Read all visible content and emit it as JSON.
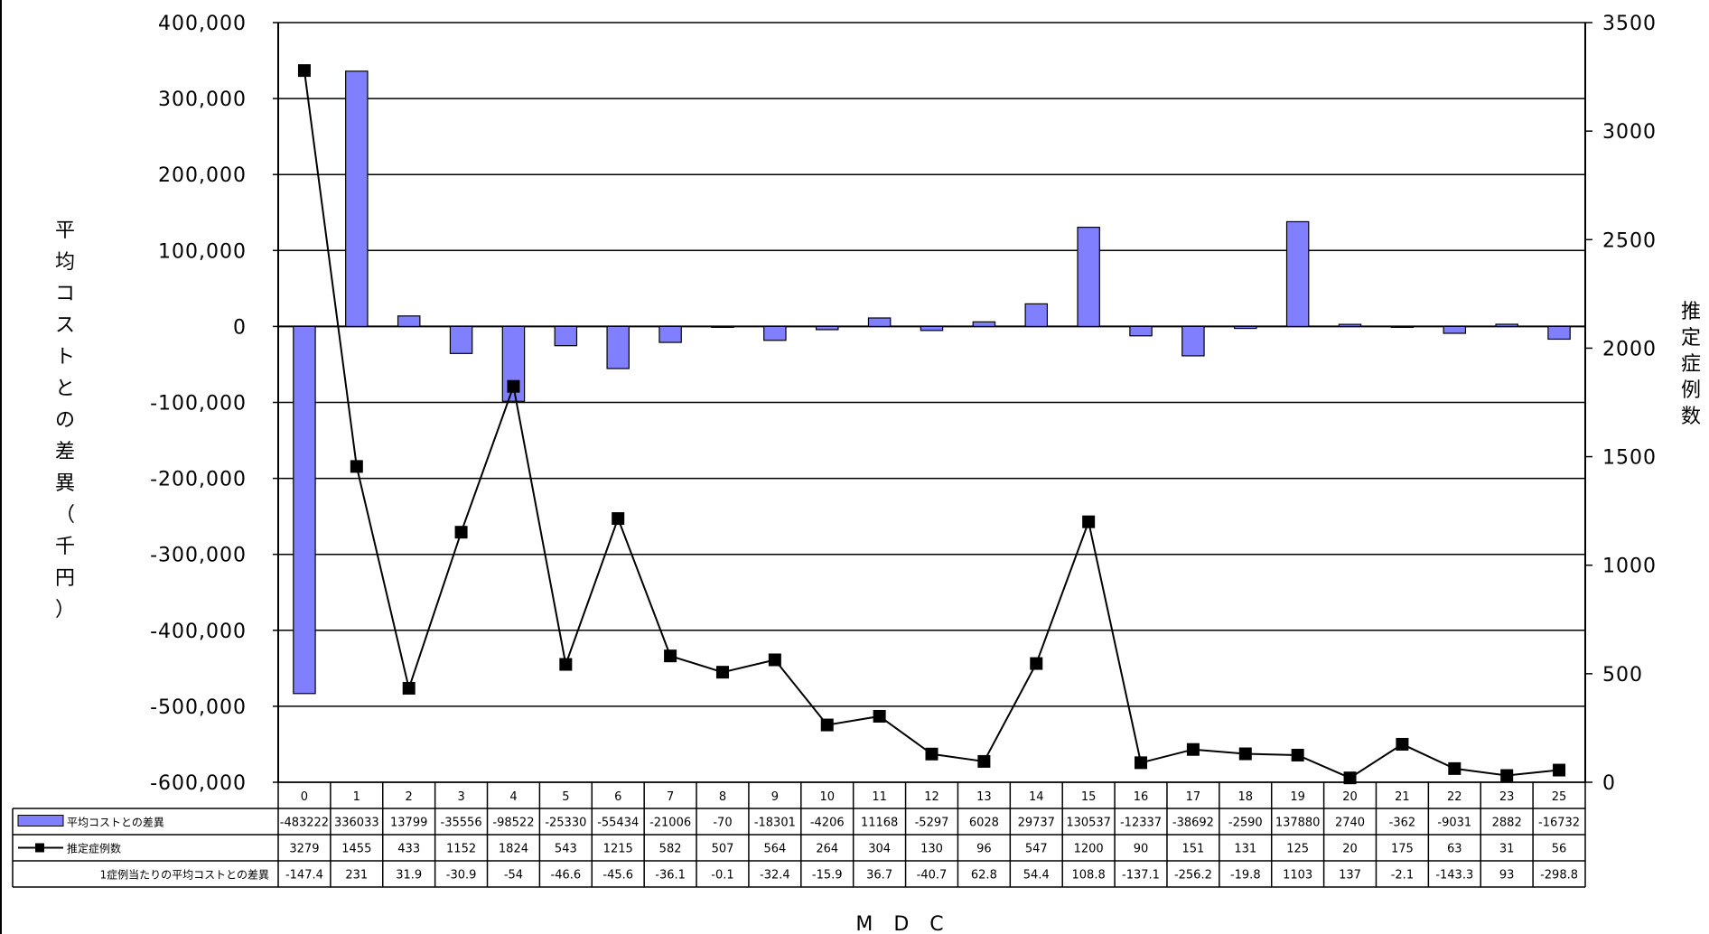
{
  "chart_data": {
    "type": "bar",
    "title": "",
    "xlabel": "M D C",
    "ylabel_left": "平均コストとの差異（千円）",
    "ylabel_right": "推定症例数",
    "ylim_left": [
      -600000,
      400000
    ],
    "ylim_right": [
      0,
      3500
    ],
    "yticks_left": [
      "400,000",
      "300,000",
      "200,000",
      "100,000",
      "0",
      "-100,000",
      "-200,000",
      "-300,000",
      "-400,000",
      "-500,000",
      "-600,000"
    ],
    "yticks_right": [
      "3500",
      "3000",
      "2500",
      "2000",
      "1500",
      "1000",
      "500",
      "0"
    ],
    "grid": true,
    "colors": {
      "bar": "#8080ff",
      "line": "#000000",
      "marker": "#000000"
    },
    "categories": [
      "0",
      "1",
      "2",
      "3",
      "4",
      "5",
      "6",
      "7",
      "8",
      "9",
      "10",
      "11",
      "12",
      "13",
      "14",
      "15",
      "16",
      "17",
      "18",
      "19",
      "20",
      "21",
      "22",
      "23",
      "25"
    ],
    "series": [
      {
        "name": "平均コストとの差異",
        "type": "bar",
        "axis": "left",
        "values": [
          -483222,
          336033,
          13799,
          -35556,
          -98522,
          -25330,
          -55434,
          -21006,
          -70,
          -18301,
          -4206,
          11168,
          -5297,
          6028,
          29737,
          130537,
          -12337,
          -38692,
          -2590,
          137880,
          2740,
          -362,
          -9031,
          2882,
          -16732
        ],
        "labels": [
          "-483222",
          "336033",
          "13799",
          "-35556",
          "-98522",
          "-25330",
          "-55434",
          "-21006",
          "-70",
          "-18301",
          "-4206",
          "11168",
          "-5297",
          "6028",
          "29737",
          "130537",
          "-12337",
          "-38692",
          "-2590",
          "137880",
          "2740",
          "-362",
          "-9031",
          "2882",
          "-16732"
        ]
      },
      {
        "name": "推定症例数",
        "type": "line",
        "axis": "right",
        "values": [
          3279,
          1455,
          433,
          1152,
          1824,
          543,
          1215,
          582,
          507,
          564,
          264,
          304,
          130,
          96,
          547,
          1200,
          90,
          151,
          131,
          125,
          20,
          175,
          63,
          31,
          56
        ],
        "labels": [
          "3279",
          "1455",
          "433",
          "1152",
          "1824",
          "543",
          "1215",
          "582",
          "507",
          "564",
          "264",
          "304",
          "130",
          "96",
          "547",
          "1200",
          "90",
          "151",
          "131",
          "125",
          "20",
          "175",
          "63",
          "31",
          "56"
        ]
      }
    ],
    "table_extra_row": {
      "name": "1症例当たりの平均コストとの差異",
      "values": [
        "-147.4",
        "231",
        "31.9",
        "-30.9",
        "-54",
        "-46.6",
        "-45.6",
        "-36.1",
        "-0.1",
        "-32.4",
        "-15.9",
        "36.7",
        "-40.7",
        "62.8",
        "54.4",
        "108.8",
        "-137.1",
        "-256.2",
        "-19.8",
        "1103",
        "137",
        "-2.1",
        "-143.3",
        "93",
        "-298.8"
      ]
    }
  }
}
